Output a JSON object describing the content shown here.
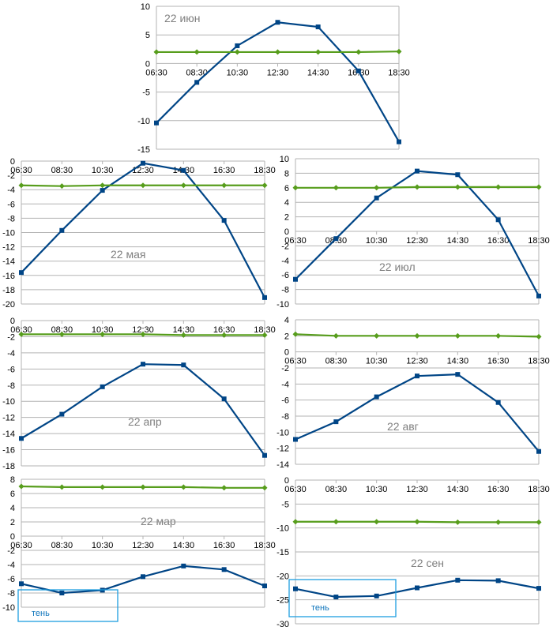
{
  "colors": {
    "series_a": "#004586",
    "series_b": "#579d1c",
    "shadow_box": "#1e9fe0",
    "title": "#7f7f7f",
    "grid": "#b3b3b3"
  },
  "chart_data": [
    {
      "type": "line",
      "title": "22 июн",
      "categories": [
        "06:30",
        "08:30",
        "10:30",
        "12:30",
        "14:30",
        "16:30",
        "18:30"
      ],
      "ylim": [
        -15,
        10
      ],
      "ystep": 5,
      "series": [
        {
          "values": [
            -10.4,
            -3.3,
            3.1,
            7.2,
            6.4,
            -1.3,
            -13.7
          ],
          "marker": "square",
          "color": "#004586"
        },
        {
          "values": [
            2.0,
            2.0,
            2.0,
            2.0,
            2.0,
            2.0,
            2.1
          ],
          "marker": "diamond",
          "color": "#579d1c"
        }
      ],
      "grid": true
    },
    {
      "type": "line",
      "title": "22 мая",
      "categories": [
        "06:30",
        "08:30",
        "10:30",
        "12:30",
        "14:30",
        "16:30",
        "18:30"
      ],
      "ylim": [
        -20,
        0
      ],
      "ystep": 2,
      "series": [
        {
          "values": [
            -15.6,
            -9.7,
            -4.1,
            -0.3,
            -1.3,
            -8.3,
            -19.1
          ],
          "marker": "square",
          "color": "#004586"
        },
        {
          "values": [
            -3.4,
            -3.5,
            -3.4,
            -3.4,
            -3.4,
            -3.4,
            -3.4
          ],
          "marker": "diamond",
          "color": "#579d1c"
        }
      ],
      "grid": true
    },
    {
      "type": "line",
      "title": "22 июл",
      "categories": [
        "06:30",
        "08:30",
        "10:30",
        "12:30",
        "14:30",
        "16:30",
        "18:30"
      ],
      "ylim": [
        -10,
        10
      ],
      "ystep": 2,
      "series": [
        {
          "values": [
            -6.6,
            -1.0,
            4.6,
            8.3,
            7.8,
            1.6,
            -8.9
          ],
          "marker": "square",
          "color": "#004586"
        },
        {
          "values": [
            6.0,
            6.0,
            6.0,
            6.1,
            6.1,
            6.1,
            6.1
          ],
          "marker": "diamond",
          "color": "#579d1c"
        }
      ],
      "grid": true
    },
    {
      "type": "line",
      "title": "22 апр",
      "categories": [
        "06:30",
        "08:30",
        "10:30",
        "12:30",
        "14:30",
        "16:30",
        "18:30"
      ],
      "ylim": [
        -18,
        0
      ],
      "ystep": 2,
      "series": [
        {
          "values": [
            -14.6,
            -11.6,
            -8.2,
            -5.4,
            -5.5,
            -9.7,
            -16.7
          ],
          "marker": "square",
          "color": "#004586"
        },
        {
          "values": [
            -1.7,
            -1.7,
            -1.7,
            -1.7,
            -1.8,
            -1.8,
            -1.8
          ],
          "marker": "diamond",
          "color": "#579d1c"
        }
      ],
      "grid": true
    },
    {
      "type": "line",
      "title": "22 авг",
      "categories": [
        "06:30",
        "08:30",
        "10:30",
        "12:30",
        "14:30",
        "16:30",
        "18:30"
      ],
      "ylim": [
        -14,
        4
      ],
      "ystep": 2,
      "series": [
        {
          "values": [
            -10.9,
            -8.7,
            -5.6,
            -3.0,
            -2.8,
            -6.3,
            -12.4
          ],
          "marker": "square",
          "color": "#004586"
        },
        {
          "values": [
            2.2,
            2.0,
            2.0,
            2.0,
            2.0,
            2.0,
            1.9
          ],
          "marker": "diamond",
          "color": "#579d1c"
        }
      ],
      "grid": true
    },
    {
      "type": "line",
      "title": "22 мар",
      "categories": [
        "06:30",
        "08:30",
        "10:30",
        "12:30",
        "14:30",
        "16:30",
        "18:30"
      ],
      "ylim": [
        -10,
        8
      ],
      "ystep": 2,
      "series": [
        {
          "values": [
            -6.7,
            -8.0,
            -7.6,
            -5.7,
            -4.2,
            -4.7,
            -7.0
          ],
          "marker": "square",
          "color": "#004586"
        },
        {
          "values": [
            7.0,
            6.9,
            6.9,
            6.9,
            6.9,
            6.8,
            6.8
          ],
          "marker": "diamond",
          "color": "#579d1c"
        }
      ],
      "annotation": {
        "label": "тень"
      },
      "grid": true
    },
    {
      "type": "line",
      "title": "22 сен",
      "categories": [
        "06:30",
        "08:30",
        "10:30",
        "12:30",
        "14:30",
        "16:30",
        "18:30"
      ],
      "ylim": [
        -30,
        0
      ],
      "ystep": 5,
      "series": [
        {
          "values": [
            -22.7,
            -24.4,
            -24.2,
            -22.5,
            -20.9,
            -21.0,
            -22.6
          ],
          "marker": "square",
          "color": "#004586"
        },
        {
          "values": [
            -8.7,
            -8.7,
            -8.7,
            -8.7,
            -8.8,
            -8.8,
            -8.8
          ],
          "marker": "diamond",
          "color": "#579d1c"
        }
      ],
      "annotation": {
        "label": "тень"
      },
      "grid": true
    }
  ]
}
